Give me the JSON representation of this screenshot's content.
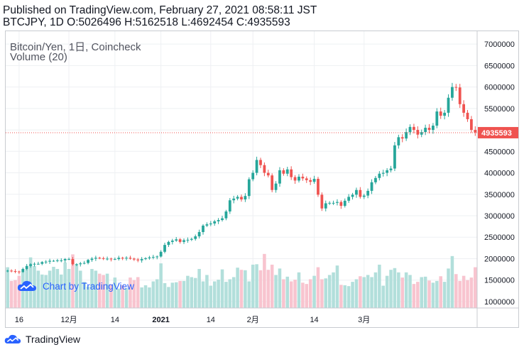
{
  "header": {
    "published": "Published on TradingView.com, February 27, 2021 08:58:11 JST",
    "ohlc": "BTCJPY, 1D O:5026496 H:5162518 L:4692454 C:4935593"
  },
  "legend": {
    "symbol": "Bitcoin/Yen, 1日, Coincheck",
    "volume": "Volume (20)"
  },
  "watermark": {
    "text": "Chart by TradingView",
    "icon": "tradingview-logo-icon"
  },
  "footer": {
    "text": "TradingView",
    "icon": "tradingview-logo-icon"
  },
  "colors": {
    "up": "#26a69a",
    "down": "#ef5350",
    "up_volume": "#b2dfdb",
    "down_volume": "#f8c4cf",
    "price_line": "#ef5350",
    "price_tag": "#ef5350"
  },
  "chart_data": {
    "type": "candlestick",
    "title": "Bitcoin/Yen, 1日, Coincheck",
    "y_axis": {
      "ticks": [
        "7000000",
        "6500000",
        "6000000",
        "5500000",
        "5000000",
        "4500000",
        "4000000",
        "3500000",
        "3000000",
        "2500000",
        "2000000",
        "1500000",
        "1000000"
      ],
      "ylim": [
        850000,
        7300000
      ],
      "position": "right"
    },
    "x_axis": {
      "ticks": [
        "16",
        "12月",
        "14",
        "2021",
        "14",
        "2月",
        "14",
        "3月"
      ]
    },
    "last_price": "4935593",
    "closes": [
      1720000,
      1710000,
      1700000,
      1690000,
      1760000,
      1830000,
      1870000,
      1880000,
      1880000,
      1920000,
      1930000,
      1950000,
      1950000,
      1960000,
      1960000,
      1990000,
      1990000,
      1870000,
      1870000,
      1890000,
      1900000,
      1970000,
      2000000,
      2020000,
      2010000,
      2000000,
      2000000,
      1990000,
      1990000,
      2020000,
      2010000,
      2020000,
      2000000,
      1980000,
      1960000,
      1990000,
      2010000,
      2030000,
      2040000,
      2050000,
      2160000,
      2320000,
      2390000,
      2420000,
      2450000,
      2390000,
      2430000,
      2440000,
      2460000,
      2520000,
      2620000,
      2770000,
      2800000,
      2820000,
      2870000,
      2900000,
      2940000,
      3100000,
      3360000,
      3400000,
      3440000,
      3380000,
      3460000,
      3850000,
      4000000,
      4300000,
      4180000,
      4000000,
      3940000,
      3600000,
      3750000,
      4060000,
      3980000,
      4080000,
      3900000,
      3820000,
      3910000,
      3870000,
      3830000,
      3790000,
      3860000,
      3490000,
      3170000,
      3290000,
      3300000,
      3300000,
      3320000,
      3230000,
      3350000,
      3440000,
      3490000,
      3600000,
      3440000,
      3470000,
      3580000,
      3780000,
      3880000,
      3980000,
      4000000,
      4060000,
      4100000,
      4640000,
      4830000,
      4800000,
      4950000,
      5070000,
      5000000,
      4890000,
      4950000,
      5050000,
      5000000,
      5100000,
      5430000,
      5330000,
      5400000,
      5750000,
      6000000,
      5990000,
      5600000,
      5400000,
      5250000,
      5000000,
      4940000
    ],
    "volumes": [
      1800000,
      1480000,
      1500000,
      1600000,
      1700000,
      1760000,
      2030000,
      1830000,
      1720000,
      1630000,
      1620000,
      1720000,
      1810000,
      1760000,
      1630000,
      1910000,
      1760000,
      2100000,
      1870000,
      1720000,
      1460000,
      1350000,
      1760000,
      1720000,
      1650000,
      1620000,
      1650000,
      1400000,
      1560000,
      1300000,
      1380000,
      1310000,
      1560000,
      1500000,
      1570000,
      1330000,
      1380000,
      1330000,
      1470000,
      1520000,
      1890000,
      1430000,
      1340000,
      1440000,
      1450000,
      1480000,
      1480000,
      1600000,
      1570000,
      1550000,
      1760000,
      1470000,
      1620000,
      1370000,
      1470000,
      1510000,
      1750000,
      1460000,
      1520000,
      1570000,
      1790000,
      1740000,
      1730000,
      1470000,
      1860000,
      1870000,
      1730000,
      2110000,
      1740000,
      1860000,
      1620000,
      1770000,
      1520000,
      1580000,
      1470000,
      1510000,
      1680000,
      1440000,
      1410000,
      1520000,
      1600000,
      1800000,
      1520000,
      1540000,
      1620000,
      1680000,
      1840000,
      1390000,
      1380000,
      1360000,
      1460000,
      1520000,
      1590000,
      1570000,
      1620000,
      1570000,
      1680000,
      1860000,
      1370000,
      1600000,
      1740000,
      1780000,
      1680000,
      1560000,
      1680000,
      1620000,
      1410000,
      1460000,
      1570000,
      1580000,
      1490000,
      1440000,
      1480000,
      1590000,
      1460000,
      1770000,
      2060000,
      1640000,
      1480000,
      1600000,
      1500000,
      1560000,
      1800000
    ],
    "grid": true,
    "legend_position": "top-left"
  }
}
